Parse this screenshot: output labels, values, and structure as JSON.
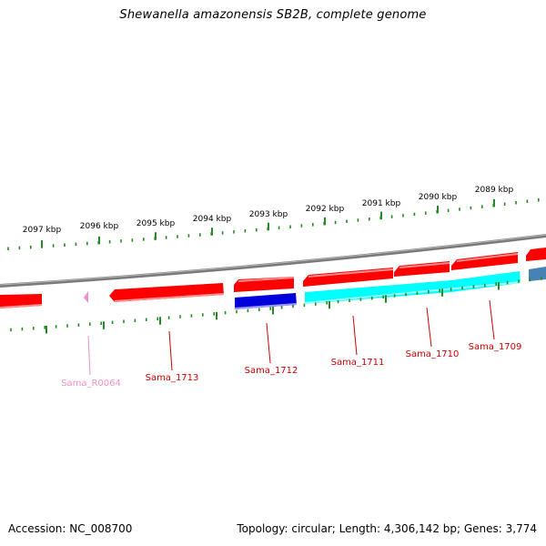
{
  "header": {
    "title": "Shewanella amazonensis SB2B, complete genome"
  },
  "footer": {
    "accession": "Accession: NC_008700",
    "summary": "Topology: circular; Length: 4,306,142 bp; Genes: 3,774"
  },
  "colors": {
    "backbone": "#7a7a7a",
    "tick": "#228b22",
    "gene_red": "#ff0000",
    "gene_blue": "#0000dd",
    "gene_cyan": "#00ffff",
    "gene_steel": "#4682b4",
    "rna_pink": "#f08cc8",
    "label_red": "#cc0000",
    "label_pink": "#f090c8"
  },
  "scale": {
    "unit": "kbp",
    "labels": [
      "2097 kbp",
      "2096 kbp",
      "2095 kbp",
      "2094 kbp",
      "2093 kbp",
      "2092 kbp",
      "2091 kbp",
      "2090 kbp",
      "2089 kbp"
    ]
  },
  "genes": [
    {
      "name": "Sama_R0064",
      "type": "rna"
    },
    {
      "name": "Sama_1713",
      "type": "cds"
    },
    {
      "name": "Sama_1712",
      "type": "cds"
    },
    {
      "name": "Sama_1711",
      "type": "cds"
    },
    {
      "name": "Sama_1710",
      "type": "cds"
    },
    {
      "name": "Sama_1709",
      "type": "cds"
    }
  ]
}
